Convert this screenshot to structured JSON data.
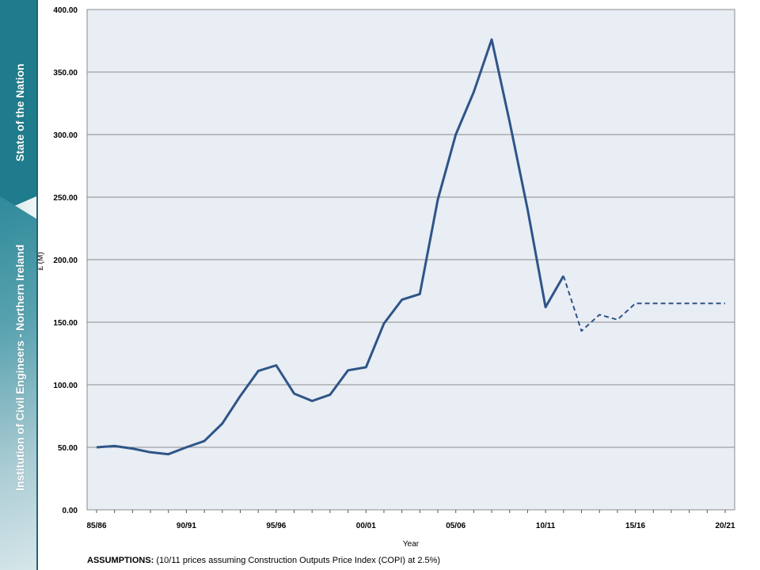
{
  "sidebar": {
    "title": "State of the Nation",
    "org": "Institution of Civil Engineers - Northern Ireland"
  },
  "footer": {
    "label": "ASSUMPTIONS:",
    "text": " (10/11 prices assuming Construction Outputs Price Index (COPI) at 2.5%)"
  },
  "colors": {
    "line": "#2e5587",
    "plot_bg": "#e9edf4",
    "grid": "#8c8c8c",
    "accent": "#1f7c8c"
  },
  "chart_data": {
    "type": "line",
    "title": "",
    "xlabel": "Year",
    "ylabel": "£ (M)",
    "ylim": [
      0,
      400
    ],
    "yticks": [
      "0.00",
      "50.00",
      "100.00",
      "150.00",
      "200.00",
      "250.00",
      "300.00",
      "350.00",
      "400.00"
    ],
    "x": [
      "85/86",
      "86/87",
      "87/88",
      "88/89",
      "89/90",
      "90/91",
      "91/92",
      "92/93",
      "93/94",
      "94/95",
      "95/96",
      "96/97",
      "97/98",
      "98/99",
      "99/00",
      "00/01",
      "01/02",
      "02/03",
      "03/04",
      "04/05",
      "05/06",
      "06/07",
      "07/08",
      "08/09",
      "09/10",
      "10/11",
      "11/12",
      "12/13",
      "13/14",
      "14/15",
      "15/16",
      "16/17",
      "17/18",
      "18/19",
      "19/20",
      "20/21"
    ],
    "xtick_labels": [
      "85/86",
      "90/91",
      "95/96",
      "00/01",
      "05/06",
      "10/11",
      "15/16",
      "20/21"
    ],
    "grid": true,
    "legend": "none",
    "series": [
      {
        "style": "solid",
        "values": [
          50,
          51,
          49,
          46,
          44.5,
          50,
          55,
          69,
          91,
          111,
          115.5,
          93,
          87,
          92,
          111.5,
          114,
          149,
          168,
          172.5,
          248,
          300,
          334,
          376,
          310,
          240,
          162,
          187,
          null,
          null,
          null,
          null,
          null,
          null,
          null,
          null,
          null
        ]
      },
      {
        "style": "dashed",
        "values": [
          null,
          null,
          null,
          null,
          null,
          null,
          null,
          null,
          null,
          null,
          null,
          null,
          null,
          null,
          null,
          null,
          null,
          null,
          null,
          null,
          null,
          null,
          null,
          null,
          null,
          null,
          187,
          143,
          156,
          152,
          165,
          165,
          165,
          165,
          165,
          165
        ]
      }
    ]
  }
}
